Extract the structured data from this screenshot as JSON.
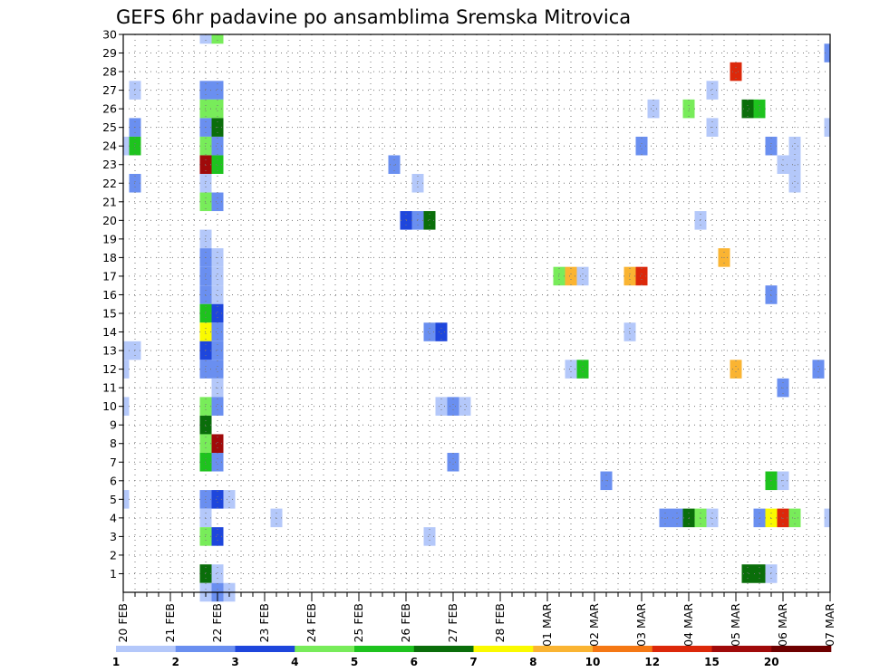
{
  "chart_data": {
    "type": "heatmap",
    "title": "GEFS 6hr padavine po ansamblima Sremska Mitrovica",
    "y_ticks": [
      1,
      2,
      3,
      4,
      5,
      6,
      7,
      8,
      9,
      10,
      11,
      12,
      13,
      14,
      15,
      16,
      17,
      18,
      19,
      20,
      21,
      22,
      23,
      24,
      25,
      26,
      27,
      28,
      29,
      30
    ],
    "ylim": [
      0,
      30
    ],
    "x_ticks": [
      "20 FEB",
      "21 FEB",
      "22 FEB",
      "23 FEB",
      "24 FEB",
      "25 FEB",
      "26 FEB",
      "27 FEB",
      "28 FEB",
      "01 MAR",
      "02 MAR",
      "03 MAR",
      "04 MAR",
      "05 MAR",
      "06 MAR",
      "07 MAR"
    ],
    "xlim": [
      0,
      60
    ],
    "grid": true,
    "colorbar": {
      "placement": "bottom",
      "levels": [
        "1",
        "2",
        "3",
        "4",
        "5",
        "6",
        "7",
        "8",
        "10",
        "12",
        "15",
        "20"
      ],
      "colors": [
        "#b4c8fa",
        "#6a8ff0",
        "#1e46dc",
        "#78ec5a",
        "#1ec31e",
        "#0a6e0a",
        "#fafa00",
        "#fab432",
        "#f57814",
        "#dc280a",
        "#a00a0a",
        "#6e0000"
      ]
    },
    "cells": [
      {
        "x": 7,
        "y": 30,
        "c": 1
      },
      {
        "x": 8,
        "y": 30,
        "c": 4
      },
      {
        "x": 60,
        "y": 29,
        "c": 2
      },
      {
        "x": 52,
        "y": 28,
        "c": 10
      },
      {
        "x": 1,
        "y": 27,
        "c": 1
      },
      {
        "x": 7,
        "y": 27,
        "c": 2
      },
      {
        "x": 8,
        "y": 27,
        "c": 2
      },
      {
        "x": 50,
        "y": 27,
        "c": 1
      },
      {
        "x": 7,
        "y": 26,
        "c": 4
      },
      {
        "x": 8,
        "y": 26,
        "c": 4
      },
      {
        "x": 45,
        "y": 26,
        "c": 1
      },
      {
        "x": 48,
        "y": 26,
        "c": 4
      },
      {
        "x": 53,
        "y": 26,
        "c": 6
      },
      {
        "x": 54,
        "y": 26,
        "c": 5
      },
      {
        "x": 1,
        "y": 25,
        "c": 2
      },
      {
        "x": 7,
        "y": 25,
        "c": 2
      },
      {
        "x": 8,
        "y": 25,
        "c": 6
      },
      {
        "x": 50,
        "y": 25,
        "c": 1
      },
      {
        "x": 60,
        "y": 25,
        "c": 1
      },
      {
        "x": 0,
        "y": 24,
        "c": 1
      },
      {
        "x": 1,
        "y": 24,
        "c": 5
      },
      {
        "x": 7,
        "y": 24,
        "c": 4
      },
      {
        "x": 8,
        "y": 24,
        "c": 2
      },
      {
        "x": 44,
        "y": 24,
        "c": 2
      },
      {
        "x": 55,
        "y": 24,
        "c": 2
      },
      {
        "x": 57,
        "y": 24,
        "c": 1
      },
      {
        "x": 7,
        "y": 23,
        "c": 11
      },
      {
        "x": 8,
        "y": 23,
        "c": 5
      },
      {
        "x": 23,
        "y": 23,
        "c": 2
      },
      {
        "x": 56,
        "y": 23,
        "c": 1
      },
      {
        "x": 57,
        "y": 23,
        "c": 1
      },
      {
        "x": 1,
        "y": 22,
        "c": 2
      },
      {
        "x": 7,
        "y": 22,
        "c": 1
      },
      {
        "x": 25,
        "y": 22,
        "c": 1
      },
      {
        "x": 57,
        "y": 22,
        "c": 1
      },
      {
        "x": 7,
        "y": 21,
        "c": 4
      },
      {
        "x": 8,
        "y": 21,
        "c": 2
      },
      {
        "x": 24,
        "y": 20,
        "c": 3
      },
      {
        "x": 25,
        "y": 20,
        "c": 2
      },
      {
        "x": 26,
        "y": 20,
        "c": 6
      },
      {
        "x": 49,
        "y": 20,
        "c": 1
      },
      {
        "x": 7,
        "y": 19,
        "c": 1
      },
      {
        "x": 7,
        "y": 18,
        "c": 2
      },
      {
        "x": 8,
        "y": 18,
        "c": 1
      },
      {
        "x": 51,
        "y": 18,
        "c": 8
      },
      {
        "x": 7,
        "y": 17,
        "c": 2
      },
      {
        "x": 8,
        "y": 17,
        "c": 1
      },
      {
        "x": 37,
        "y": 17,
        "c": 4
      },
      {
        "x": 38,
        "y": 17,
        "c": 8
      },
      {
        "x": 39,
        "y": 17,
        "c": 1
      },
      {
        "x": 43,
        "y": 17,
        "c": 8
      },
      {
        "x": 44,
        "y": 17,
        "c": 10
      },
      {
        "x": 7,
        "y": 16,
        "c": 2
      },
      {
        "x": 8,
        "y": 16,
        "c": 1
      },
      {
        "x": 55,
        "y": 16,
        "c": 2
      },
      {
        "x": 7,
        "y": 15,
        "c": 5
      },
      {
        "x": 8,
        "y": 15,
        "c": 3
      },
      {
        "x": 7,
        "y": 14,
        "c": 7
      },
      {
        "x": 8,
        "y": 14,
        "c": 2
      },
      {
        "x": 26,
        "y": 14,
        "c": 2
      },
      {
        "x": 27,
        "y": 14,
        "c": 3
      },
      {
        "x": 43,
        "y": 14,
        "c": 1
      },
      {
        "x": 0,
        "y": 13,
        "c": 1
      },
      {
        "x": 1,
        "y": 13,
        "c": 1
      },
      {
        "x": 7,
        "y": 13,
        "c": 3
      },
      {
        "x": 8,
        "y": 13,
        "c": 2
      },
      {
        "x": 0,
        "y": 12,
        "c": 1
      },
      {
        "x": 7,
        "y": 12,
        "c": 2
      },
      {
        "x": 8,
        "y": 12,
        "c": 2
      },
      {
        "x": 38,
        "y": 12,
        "c": 1
      },
      {
        "x": 39,
        "y": 12,
        "c": 5
      },
      {
        "x": 52,
        "y": 12,
        "c": 8
      },
      {
        "x": 59,
        "y": 12,
        "c": 2
      },
      {
        "x": 8,
        "y": 11,
        "c": 1
      },
      {
        "x": 56,
        "y": 11,
        "c": 2
      },
      {
        "x": 0,
        "y": 10,
        "c": 1
      },
      {
        "x": 7,
        "y": 10,
        "c": 4
      },
      {
        "x": 8,
        "y": 10,
        "c": 2
      },
      {
        "x": 27,
        "y": 10,
        "c": 1
      },
      {
        "x": 28,
        "y": 10,
        "c": 2
      },
      {
        "x": 29,
        "y": 10,
        "c": 1
      },
      {
        "x": 7,
        "y": 9,
        "c": 6
      },
      {
        "x": 7,
        "y": 8,
        "c": 4
      },
      {
        "x": 8,
        "y": 8,
        "c": 11
      },
      {
        "x": 7,
        "y": 7,
        "c": 5
      },
      {
        "x": 8,
        "y": 7,
        "c": 2
      },
      {
        "x": 28,
        "y": 7,
        "c": 2
      },
      {
        "x": 41,
        "y": 6,
        "c": 2
      },
      {
        "x": 55,
        "y": 6,
        "c": 5
      },
      {
        "x": 56,
        "y": 6,
        "c": 1
      },
      {
        "x": 0,
        "y": 5,
        "c": 1
      },
      {
        "x": 7,
        "y": 5,
        "c": 2
      },
      {
        "x": 8,
        "y": 5,
        "c": 3
      },
      {
        "x": 9,
        "y": 5,
        "c": 1
      },
      {
        "x": 7,
        "y": 4,
        "c": 1
      },
      {
        "x": 13,
        "y": 4,
        "c": 1
      },
      {
        "x": 46,
        "y": 4,
        "c": 2
      },
      {
        "x": 47,
        "y": 4,
        "c": 2
      },
      {
        "x": 48,
        "y": 4,
        "c": 6
      },
      {
        "x": 49,
        "y": 4,
        "c": 4
      },
      {
        "x": 50,
        "y": 4,
        "c": 1
      },
      {
        "x": 54,
        "y": 4,
        "c": 2
      },
      {
        "x": 55,
        "y": 4,
        "c": 7
      },
      {
        "x": 56,
        "y": 4,
        "c": 10
      },
      {
        "x": 57,
        "y": 4,
        "c": 4
      },
      {
        "x": 60,
        "y": 4,
        "c": 1
      },
      {
        "x": 7,
        "y": 3,
        "c": 4
      },
      {
        "x": 8,
        "y": 3,
        "c": 3
      },
      {
        "x": 26,
        "y": 3,
        "c": 1
      },
      {
        "x": 7,
        "y": 1,
        "c": 6
      },
      {
        "x": 8,
        "y": 1,
        "c": 1
      },
      {
        "x": 53,
        "y": 1,
        "c": 6
      },
      {
        "x": 54,
        "y": 1,
        "c": 6
      },
      {
        "x": 55,
        "y": 1,
        "c": 1
      },
      {
        "x": 7,
        "y": 0,
        "c": 1
      },
      {
        "x": 8,
        "y": 0,
        "c": 2
      },
      {
        "x": 9,
        "y": 0,
        "c": 1
      }
    ]
  }
}
